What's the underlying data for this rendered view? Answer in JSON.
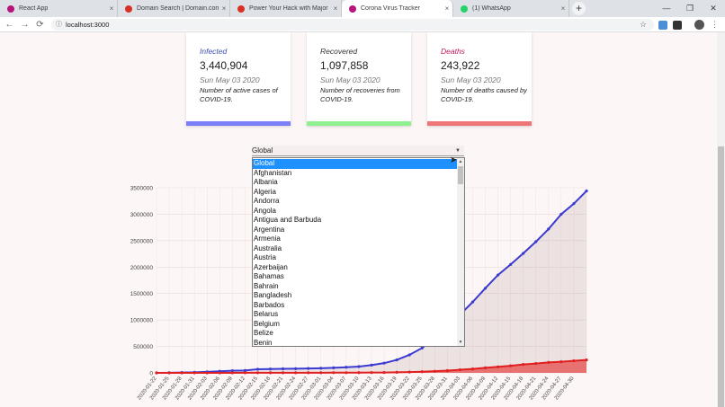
{
  "browser": {
    "tabs": [
      {
        "title": "React App",
        "icon_color": "#b5147a"
      },
      {
        "title": "Domain Search | Domain.com",
        "icon_color": "#d93025"
      },
      {
        "title": "Power Your Hack with Major Lea",
        "icon_color": "#d93025"
      },
      {
        "title": "Corona Virus Tracker",
        "icon_color": "#b5147a"
      },
      {
        "title": "(1) WhatsApp",
        "icon_color": "#25d366"
      }
    ],
    "new_tab": "+",
    "close_glyph": "×",
    "window_controls": {
      "minimize": "—",
      "maximize": "❐",
      "close": "✕"
    },
    "url": "localhost:3000",
    "nav": {
      "back": "←",
      "forward": "→",
      "reload": "⟳"
    },
    "lock_glyph": "ⓘ",
    "star_glyph": "☆",
    "menu_glyph": "⋮"
  },
  "cards": [
    {
      "title": "Infected",
      "value": "3,440,904",
      "date": "Sun May 03 2020",
      "description": "Number of active cases of COVID-19.",
      "title_color": "#3f51b5",
      "bar_color": "#7b7ff7"
    },
    {
      "title": "Recovered",
      "value": "1,097,858",
      "date": "Sun May 03 2020",
      "description": "Number of recoveries from COVID-19.",
      "title_color": "#333333",
      "bar_color": "#8ef08e"
    },
    {
      "title": "Deaths",
      "value": "243,922",
      "date": "Sun May 03 2020",
      "description": "Number of deaths caused by COVID-19.",
      "title_color": "#c2185b",
      "bar_color": "#ee7676"
    }
  ],
  "country_select": {
    "selected": "Global",
    "arrow": "▼",
    "options": [
      "Global",
      "Afghanistan",
      "Albania",
      "Algeria",
      "Andorra",
      "Angola",
      "Antigua and Barbuda",
      "Argentina",
      "Armenia",
      "Australia",
      "Austria",
      "Azerbaijan",
      "Bahamas",
      "Bahrain",
      "Bangladesh",
      "Barbados",
      "Belarus",
      "Belgium",
      "Belize",
      "Benin"
    ],
    "scroll_up": "▲",
    "scroll_down": "▼"
  },
  "chart_data": {
    "type": "line",
    "ylim": [
      0,
      3500000
    ],
    "yticks": [
      0,
      500000,
      1000000,
      1500000,
      2000000,
      2500000,
      3000000,
      3500000
    ],
    "x_tick_labels": [
      "2020-01-22",
      "2020-01-25",
      "2020-01-28",
      "2020-01-31",
      "2020-02-03",
      "2020-02-06",
      "2020-02-09",
      "2020-02-12",
      "2020-02-15",
      "2020-02-18",
      "2020-02-21",
      "2020-02-24",
      "2020-02-27",
      "2020-03-01",
      "2020-03-04",
      "2020-03-07",
      "2020-03-10",
      "2020-03-13",
      "2020-03-16",
      "2020-03-19",
      "2020-03-22",
      "2020-03-25",
      "2020-03-28",
      "2020-03-31",
      "2020-04-03",
      "2020-04-06",
      "2020-04-09",
      "2020-04-12",
      "2020-04-15",
      "2020-04-18",
      "2020-04-21",
      "2020-04-24",
      "2020-04-27",
      "2020-04-30"
    ],
    "x": [
      "2020-01-22",
      "2020-01-25",
      "2020-01-28",
      "2020-01-31",
      "2020-02-03",
      "2020-02-06",
      "2020-02-09",
      "2020-02-12",
      "2020-02-15",
      "2020-02-18",
      "2020-02-21",
      "2020-02-24",
      "2020-02-27",
      "2020-03-01",
      "2020-03-04",
      "2020-03-07",
      "2020-03-10",
      "2020-03-13",
      "2020-03-16",
      "2020-03-19",
      "2020-03-22",
      "2020-03-25",
      "2020-03-28",
      "2020-03-31",
      "2020-04-03",
      "2020-04-06",
      "2020-04-09",
      "2020-04-12",
      "2020-04-15",
      "2020-04-18",
      "2020-04-21",
      "2020-04-24",
      "2020-04-27",
      "2020-04-30",
      "2020-05-03"
    ],
    "series": [
      {
        "values": [
          600,
          2900,
          6200,
          10000,
          20000,
          30000,
          40000,
          45000,
          69000,
          73000,
          77000,
          79000,
          83000,
          88000,
          95000,
          106000,
          119000,
          146000,
          184000,
          245000,
          340000,
          470000,
          660000,
          860000,
          1100000,
          1340000,
          1600000,
          1850000,
          2050000,
          2260000,
          2480000,
          2720000,
          3000000,
          3200000,
          3440000
        ],
        "color": "#3b3bd1"
      },
      {
        "values": [
          17,
          80,
          130,
          260,
          430,
          640,
          910,
          1100,
          1500,
          1900,
          2250,
          2620,
          2810,
          2990,
          3280,
          3500,
          4300,
          5400,
          7100,
          10000,
          14700,
          21300,
          30900,
          42300,
          58800,
          74500,
          95700,
          114000,
          134000,
          160000,
          177000,
          197000,
          211000,
          228000,
          244000
        ],
        "color": "#e02020"
      }
    ],
    "grid": true,
    "legend": "none"
  }
}
